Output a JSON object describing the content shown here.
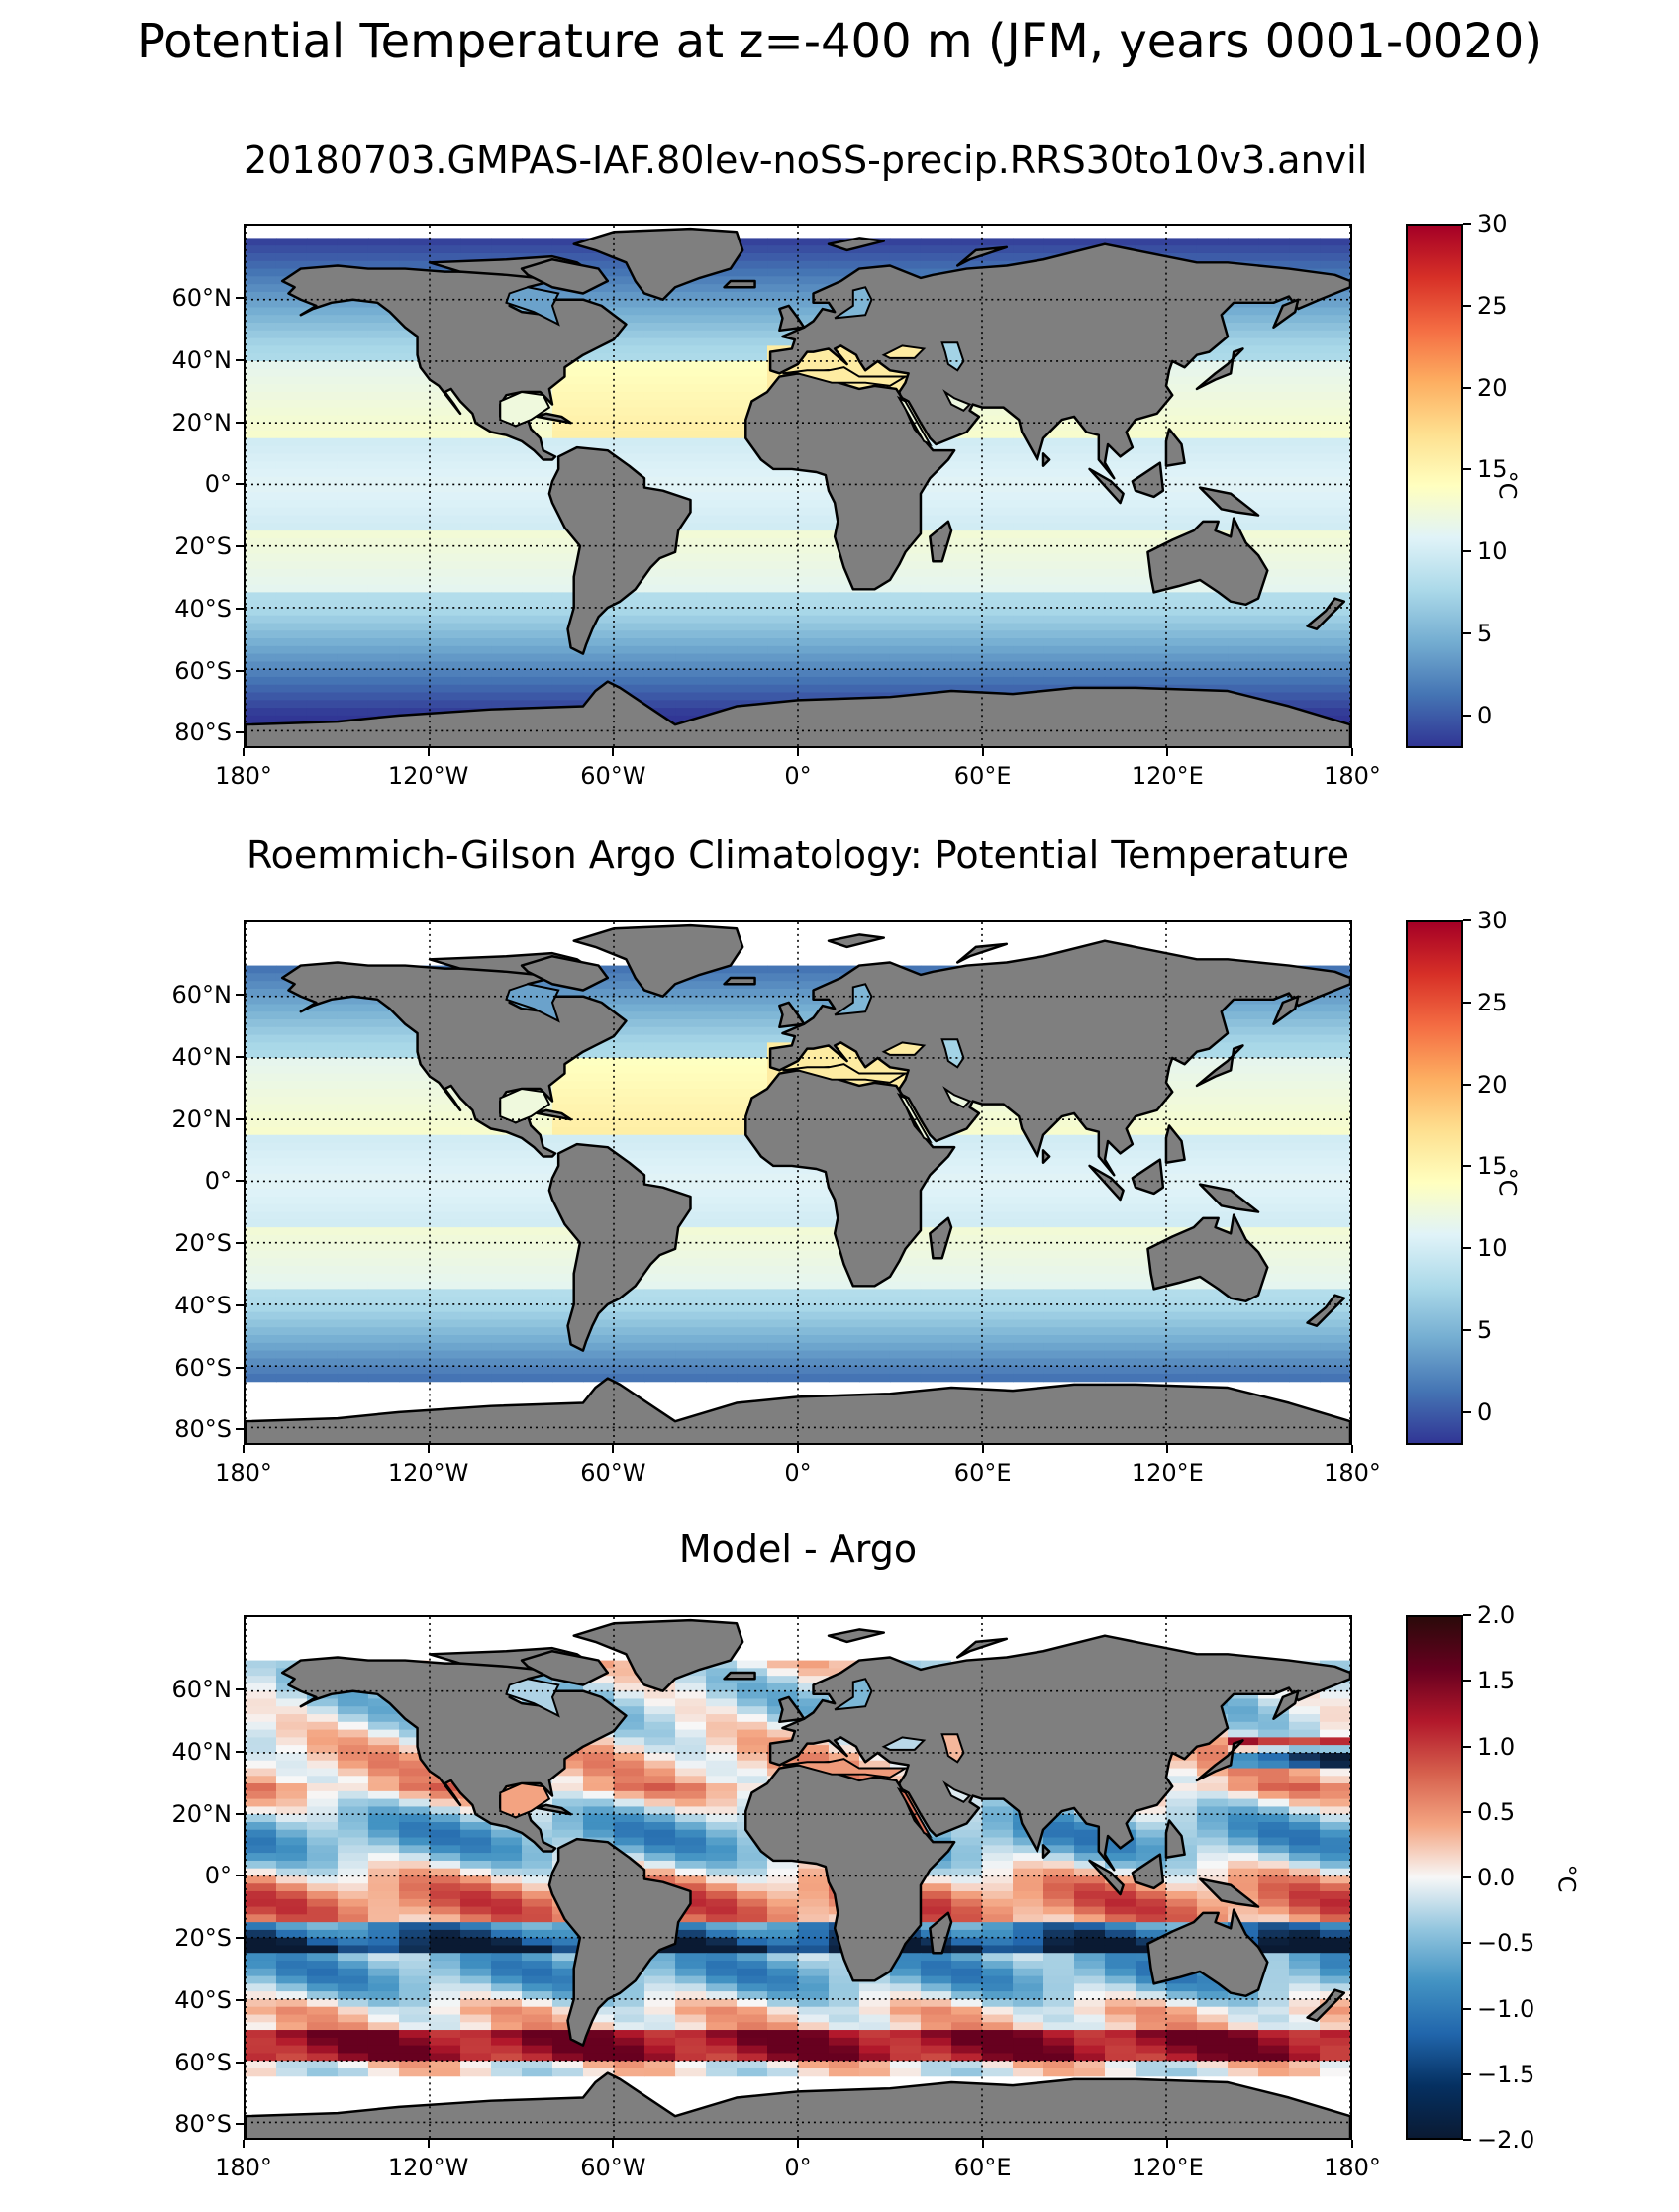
{
  "suptitle": "Potential Temperature at z=-400 m (JFM, years 0001-0020)",
  "panels": [
    {
      "id": "model",
      "title": "20180703.GMPAS-IAF.80lev-noSS-precip.RRS30to10v3.anvil",
      "colormap": "RdYlBu_r",
      "colorbar": {
        "label": "°C",
        "range": [
          -2,
          30
        ],
        "ticks": [
          "30",
          "25",
          "20",
          "15",
          "10",
          "5",
          "0"
        ],
        "colors": [
          "#a50026",
          "#d73027",
          "#f46d43",
          "#fdae61",
          "#fee090",
          "#ffffbf",
          "#e0f3f8",
          "#abd9e9",
          "#74add1",
          "#4575b4",
          "#313695"
        ]
      }
    },
    {
      "id": "obs",
      "title": "Roemmich-Gilson Argo Climatology: Potential Temperature",
      "colormap": "RdYlBu_r",
      "colorbar": {
        "label": "°C",
        "range": [
          -2,
          30
        ],
        "ticks": [
          "30",
          "25",
          "20",
          "15",
          "10",
          "5",
          "0"
        ],
        "colors": [
          "#a50026",
          "#d73027",
          "#f46d43",
          "#fdae61",
          "#fee090",
          "#ffffbf",
          "#e0f3f8",
          "#abd9e9",
          "#74add1",
          "#4575b4",
          "#313695"
        ]
      }
    },
    {
      "id": "diff",
      "title": "Model - Argo",
      "colormap": "RdBu_r",
      "colorbar": {
        "label": "°C",
        "range": [
          -2,
          2
        ],
        "ticks": [
          "2.0",
          "1.5",
          "1.0",
          "0.5",
          "0.0",
          "−0.5",
          "−1.0",
          "−1.5",
          "−2.0"
        ],
        "colors": [
          "#2b0a0a",
          "#67001f",
          "#b2182b",
          "#d6604d",
          "#f4a582",
          "#f7f7f7",
          "#92c5de",
          "#4393c3",
          "#2166ac",
          "#053061",
          "#0a1a33"
        ]
      }
    }
  ],
  "lat_ticks": [
    "60°N",
    "40°N",
    "20°N",
    "0°",
    "20°S",
    "40°S",
    "60°S",
    "80°S"
  ],
  "lon_ticks": [
    "180°",
    "120°W",
    "60°W",
    "0°",
    "60°E",
    "120°E",
    "180°"
  ],
  "land_color": "#7f7f7f"
}
